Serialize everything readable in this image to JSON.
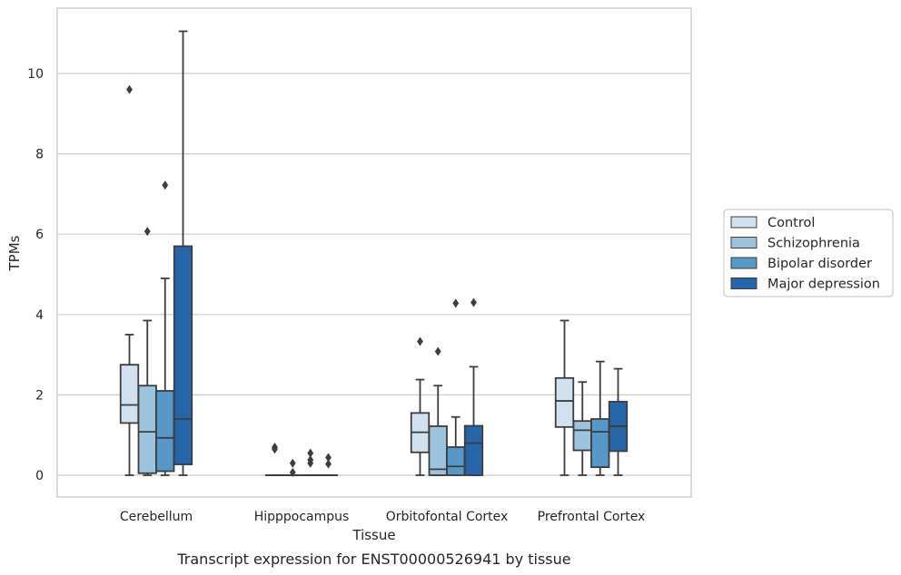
{
  "chart_data": {
    "type": "box",
    "caption": "Transcript expression for ENST00000526941 by tissue",
    "xlabel": "Tissue",
    "ylabel": "TPMs",
    "ylim": [
      -0.55,
      11.65
    ],
    "yticks": [
      0,
      2,
      4,
      6,
      8,
      10
    ],
    "grid": "horizontal",
    "legend_position": "right",
    "categories": [
      "Cerebellum",
      "Hipppocampus",
      "Orbitofontal Cortex",
      "Prefrontal Cortex"
    ],
    "series": [
      {
        "name": "Control",
        "color": "#d1e1f0",
        "boxes": [
          {
            "whisker_low": 0,
            "q1": 1.3,
            "median": 1.75,
            "q3": 2.75,
            "whisker_high": 3.5,
            "outliers": [
              9.6
            ]
          },
          {
            "whisker_low": 0,
            "q1": 0,
            "median": 0,
            "q3": 0,
            "whisker_high": 0,
            "outliers": [
              0.65,
              0.7
            ]
          },
          {
            "whisker_low": 0,
            "q1": 0.57,
            "median": 1.07,
            "q3": 1.55,
            "whisker_high": 2.38,
            "outliers": [
              3.33
            ]
          },
          {
            "whisker_low": 0,
            "q1": 1.2,
            "median": 1.85,
            "q3": 2.42,
            "whisker_high": 3.85,
            "outliers": []
          }
        ]
      },
      {
        "name": "Schizophrenia",
        "color": "#9dc3de",
        "boxes": [
          {
            "whisker_low": 0,
            "q1": 0.05,
            "median": 1.08,
            "q3": 2.23,
            "whisker_high": 3.85,
            "outliers": [
              6.07
            ]
          },
          {
            "whisker_low": 0,
            "q1": 0,
            "median": 0,
            "q3": 0,
            "whisker_high": 0,
            "outliers": [
              0.07,
              0.3
            ]
          },
          {
            "whisker_low": 0,
            "q1": 0,
            "median": 0.15,
            "q3": 1.22,
            "whisker_high": 2.23,
            "outliers": [
              3.08
            ]
          },
          {
            "whisker_low": 0,
            "q1": 0.62,
            "median": 1.12,
            "q3": 1.35,
            "whisker_high": 2.32,
            "outliers": []
          }
        ]
      },
      {
        "name": "Bipolar disorder",
        "color": "#5798c8",
        "boxes": [
          {
            "whisker_low": 0,
            "q1": 0.1,
            "median": 0.93,
            "q3": 2.1,
            "whisker_high": 4.9,
            "outliers": [
              7.22
            ]
          },
          {
            "whisker_low": 0,
            "q1": 0,
            "median": 0,
            "q3": 0,
            "whisker_high": 0,
            "outliers": [
              0.3,
              0.38,
              0.55
            ]
          },
          {
            "whisker_low": 0,
            "q1": 0,
            "median": 0.22,
            "q3": 0.7,
            "whisker_high": 1.45,
            "outliers": [
              4.28
            ]
          },
          {
            "whisker_low": 0,
            "q1": 0.2,
            "median": 1.08,
            "q3": 1.4,
            "whisker_high": 2.83,
            "outliers": []
          }
        ]
      },
      {
        "name": "Major depression",
        "color": "#2565a8",
        "boxes": [
          {
            "whisker_low": 0,
            "q1": 0.27,
            "median": 1.4,
            "q3": 5.7,
            "whisker_high": 11.05,
            "outliers": []
          },
          {
            "whisker_low": 0,
            "q1": 0,
            "median": 0,
            "q3": 0,
            "whisker_high": 0,
            "outliers": [
              0.28,
              0.44
            ]
          },
          {
            "whisker_low": 0,
            "q1": 0,
            "median": 0.8,
            "q3": 1.23,
            "whisker_high": 2.7,
            "outliers": [
              4.3
            ]
          },
          {
            "whisker_low": 0,
            "q1": 0.6,
            "median": 1.22,
            "q3": 1.83,
            "whisker_high": 2.65,
            "outliers": []
          }
        ]
      }
    ]
  }
}
